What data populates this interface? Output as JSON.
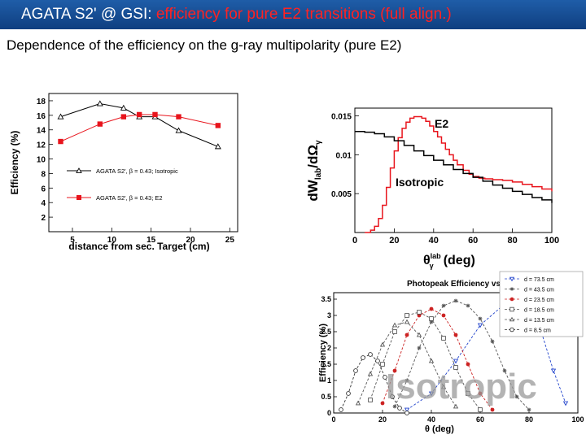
{
  "header": {
    "title_prefix": "AGATA S2' @ GSI: ",
    "title_highlight": "efficiency for pure E2 transitions (full align.)"
  },
  "subtitle": "Dependence of the efficiency on the g-ray multipolarity (pure E2)",
  "colors": {
    "header_bg": "#1a4f95",
    "title_highlight": "#ff2222",
    "red_series": "#e8141c",
    "black_series": "#000000",
    "blue_series": "#2244cc"
  },
  "chart_data": [
    {
      "type": "line",
      "xlabel": "distance from sec. Target (cm)",
      "ylabel": "Efficiency (%)",
      "xlim": [
        2,
        26
      ],
      "ylim": [
        0,
        19
      ],
      "xticks": [
        5,
        10,
        15,
        20,
        25
      ],
      "yticks": [
        2,
        4,
        6,
        8,
        10,
        12,
        14,
        16,
        18
      ],
      "series": [
        {
          "name": "AGATA S2', β = 0.43; Isotropic",
          "marker": "open-triangle",
          "color": "#000000",
          "x": [
            3.5,
            8.5,
            11.5,
            13.5,
            15.5,
            18.5,
            23.5
          ],
          "y": [
            15.8,
            17.6,
            17.0,
            15.8,
            15.8,
            13.9,
            11.7
          ]
        },
        {
          "name": "AGATA S2', β = 0.43; E2",
          "marker": "filled-square",
          "color": "#e8141c",
          "x": [
            3.5,
            8.5,
            11.5,
            13.5,
            15.5,
            18.5,
            23.5
          ],
          "y": [
            12.4,
            14.8,
            15.8,
            16.1,
            16.1,
            15.8,
            14.6
          ]
        }
      ]
    },
    {
      "type": "line",
      "xlabel_main": "θ",
      "xlabel_sup": "lab",
      "xlabel_sub": "γ",
      "xlabel_unit": "(deg)",
      "ylabel_prefix": "dW",
      "ylabel_sub": "lab",
      "ylabel_suffix": "/dΩ",
      "ylabel_sub2": "γ",
      "xlim": [
        0,
        100
      ],
      "ylim": [
        0,
        0.016
      ],
      "xticks": [
        0,
        20,
        40,
        60,
        80,
        100
      ],
      "ytick_values": [
        0.005,
        0.01,
        0.015
      ],
      "ytick_labels": [
        "0.005",
        "0.01",
        "0.015"
      ],
      "annotations": [
        "E2",
        "Isotropic"
      ],
      "series": [
        {
          "name": "E2",
          "color": "#e8141c",
          "x": [
            5,
            8,
            10,
            12,
            14,
            16,
            18,
            20,
            22,
            24,
            26,
            28,
            30,
            32,
            34,
            36,
            38,
            40,
            42,
            44,
            46,
            48,
            50,
            52,
            55,
            58,
            60,
            63,
            66,
            70,
            75,
            80,
            85,
            90,
            95,
            100
          ],
          "y": [
            0.0,
            0.0003,
            0.0008,
            0.0018,
            0.0035,
            0.0058,
            0.0083,
            0.0105,
            0.0122,
            0.0134,
            0.0142,
            0.0147,
            0.0149,
            0.0149,
            0.0147,
            0.0143,
            0.0137,
            0.013,
            0.0123,
            0.0115,
            0.0107,
            0.01,
            0.0093,
            0.0087,
            0.008,
            0.0075,
            0.0072,
            0.007,
            0.0069,
            0.0068,
            0.0067,
            0.0065,
            0.0062,
            0.0059,
            0.0056,
            0.0053
          ]
        },
        {
          "name": "Isotropic",
          "color": "#000000",
          "x": [
            0,
            5,
            10,
            15,
            20,
            25,
            30,
            35,
            40,
            45,
            50,
            55,
            60,
            65,
            70,
            75,
            80,
            85,
            90,
            95,
            100
          ],
          "y": [
            0.013,
            0.0129,
            0.0127,
            0.0123,
            0.0118,
            0.0112,
            0.0105,
            0.0099,
            0.0093,
            0.0087,
            0.0081,
            0.0076,
            0.0071,
            0.0066,
            0.0061,
            0.0057,
            0.0053,
            0.0049,
            0.0045,
            0.0042,
            0.0038
          ]
        }
      ]
    },
    {
      "type": "line",
      "title": "Photopeak Efficiency vs θ",
      "xlabel": "θ (deg)",
      "ylabel": "Efficiency (%)",
      "xlim": [
        0,
        100
      ],
      "ylim": [
        0,
        3.7
      ],
      "xticks": [
        0,
        20,
        40,
        60,
        80,
        100
      ],
      "yticks": [
        0,
        0.5,
        1,
        1.5,
        2,
        2.5,
        3,
        3.5
      ],
      "ytick_labels": [
        "0",
        "0.5",
        "1",
        "1.5",
        "2",
        "2.5",
        "3",
        "3.5"
      ],
      "watermark": "Isotropic",
      "series": [
        {
          "name": "d = 73.5 cm",
          "color": "#2244cc",
          "marker": "triangle-down",
          "x": [
            30,
            40,
            50,
            60,
            70,
            75,
            80,
            85,
            90,
            95
          ],
          "y": [
            0.1,
            0.6,
            1.6,
            2.7,
            3.35,
            3.42,
            3.2,
            2.5,
            1.3,
            0.3
          ]
        },
        {
          "name": "d = 43.5 cm",
          "color": "#555555",
          "marker": "star",
          "x": [
            25,
            30,
            35,
            40,
            45,
            50,
            55,
            60,
            65,
            70,
            75,
            80
          ],
          "y": [
            0.2,
            1.0,
            2.0,
            2.8,
            3.3,
            3.45,
            3.3,
            2.9,
            2.2,
            1.3,
            0.5,
            0.1
          ]
        },
        {
          "name": "d = 23.5 cm",
          "color": "#cc2222",
          "marker": "filled-circle",
          "x": [
            20,
            25,
            30,
            35,
            40,
            45,
            50,
            55,
            60,
            65
          ],
          "y": [
            0.3,
            1.3,
            2.4,
            3.0,
            3.2,
            3.0,
            2.4,
            1.5,
            0.6,
            0.1
          ]
        },
        {
          "name": "d = 18.5 cm",
          "color": "#555555",
          "marker": "open-square",
          "x": [
            15,
            20,
            25,
            30,
            35,
            40,
            45,
            50,
            55,
            60
          ],
          "y": [
            0.4,
            1.5,
            2.5,
            3.0,
            3.1,
            2.9,
            2.3,
            1.4,
            0.6,
            0.1
          ]
        },
        {
          "name": "d = 13.5 cm",
          "color": "#555555",
          "marker": "open-triangle",
          "x": [
            10,
            15,
            20,
            25,
            30,
            35,
            40,
            45,
            50
          ],
          "y": [
            0.3,
            1.2,
            2.1,
            2.7,
            2.8,
            2.4,
            1.6,
            0.8,
            0.2
          ]
        },
        {
          "name": "d = 8.5 cm",
          "color": "#333333",
          "marker": "open-circle",
          "x": [
            3,
            6,
            9,
            12,
            15,
            18,
            21,
            24,
            27,
            30
          ],
          "y": [
            0.1,
            0.6,
            1.3,
            1.7,
            1.8,
            1.6,
            1.1,
            0.5,
            0.15,
            0.0
          ]
        }
      ]
    }
  ]
}
